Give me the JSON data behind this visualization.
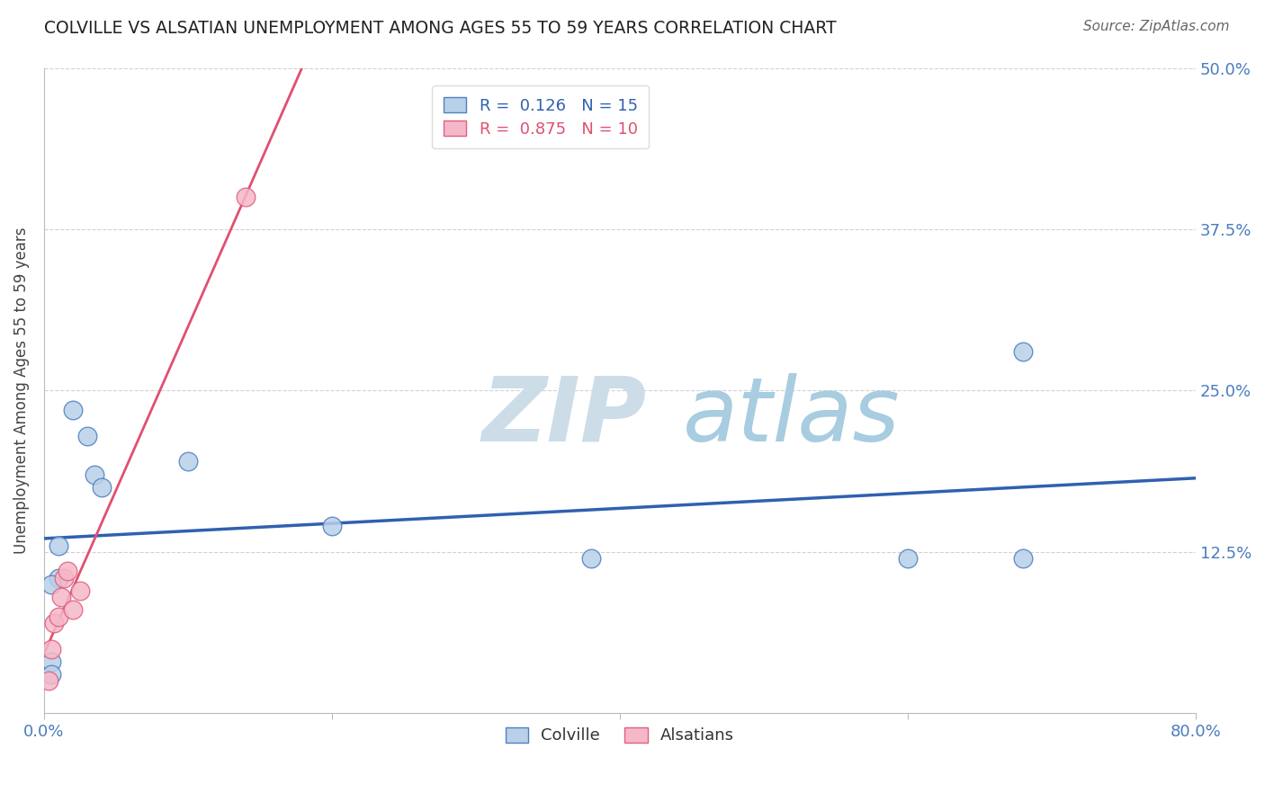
{
  "title": "COLVILLE VS ALSATIAN UNEMPLOYMENT AMONG AGES 55 TO 59 YEARS CORRELATION CHART",
  "source": "Source: ZipAtlas.com",
  "ylabel": "Unemployment Among Ages 55 to 59 years",
  "xlim": [
    0.0,
    0.8
  ],
  "ylim": [
    0.0,
    0.5
  ],
  "xticks": [
    0.0,
    0.2,
    0.4,
    0.6,
    0.8
  ],
  "xtick_labels": [
    "0.0%",
    "",
    "",
    "",
    "80.0%"
  ],
  "yticks": [
    0.125,
    0.25,
    0.375,
    0.5
  ],
  "right_ytick_labels": [
    "12.5%",
    "25.0%",
    "37.5%",
    "50.0%"
  ],
  "colville_color": "#b8d0e8",
  "alsatian_color": "#f5b8c8",
  "colville_edge_color": "#5080c0",
  "alsatian_edge_color": "#e06080",
  "colville_line_color": "#3060b0",
  "alsatian_line_color": "#e05070",
  "colville_R": 0.126,
  "colville_N": 15,
  "alsatian_R": 0.875,
  "alsatian_N": 10,
  "colville_x": [
    0.01,
    0.01,
    0.02,
    0.03,
    0.035,
    0.04,
    0.1,
    0.2,
    0.38,
    0.6,
    0.68,
    0.68,
    0.005,
    0.005,
    0.005
  ],
  "colville_y": [
    0.13,
    0.105,
    0.235,
    0.215,
    0.185,
    0.175,
    0.195,
    0.145,
    0.12,
    0.12,
    0.28,
    0.12,
    0.1,
    0.04,
    0.03
  ],
  "alsatian_x": [
    0.003,
    0.005,
    0.007,
    0.01,
    0.012,
    0.014,
    0.016,
    0.02,
    0.025,
    0.14
  ],
  "alsatian_y": [
    0.025,
    0.05,
    0.07,
    0.075,
    0.09,
    0.105,
    0.11,
    0.08,
    0.095,
    0.4
  ],
  "background_color": "#ffffff",
  "grid_color": "#cccccc",
  "watermark_zip_color": "#c5dff0",
  "watermark_atlas_color": "#a8cce4"
}
